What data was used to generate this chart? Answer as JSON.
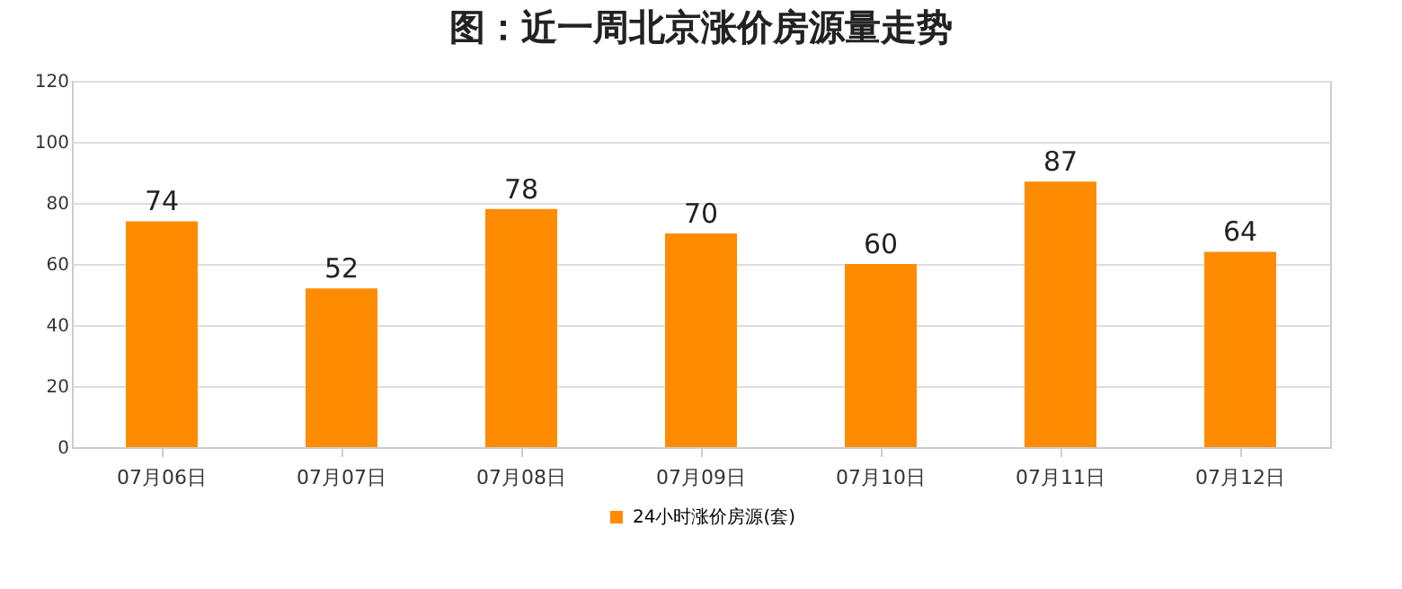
{
  "chart_data": {
    "type": "bar",
    "title": "图：近一周北京涨价房源量走势",
    "categories": [
      "07月06日",
      "07月07日",
      "07月08日",
      "07月09日",
      "07月10日",
      "07月11日",
      "07月12日"
    ],
    "series": [
      {
        "name": "24小时涨价房源(套)",
        "color": "#ff8c00",
        "values": [
          74,
          52,
          78,
          70,
          60,
          87,
          64
        ]
      }
    ],
    "ylim": [
      0,
      120
    ],
    "yticks": [
      0,
      20,
      40,
      60,
      80,
      100,
      120
    ],
    "grid": "y",
    "legend": "bottom",
    "data_labels": true
  }
}
